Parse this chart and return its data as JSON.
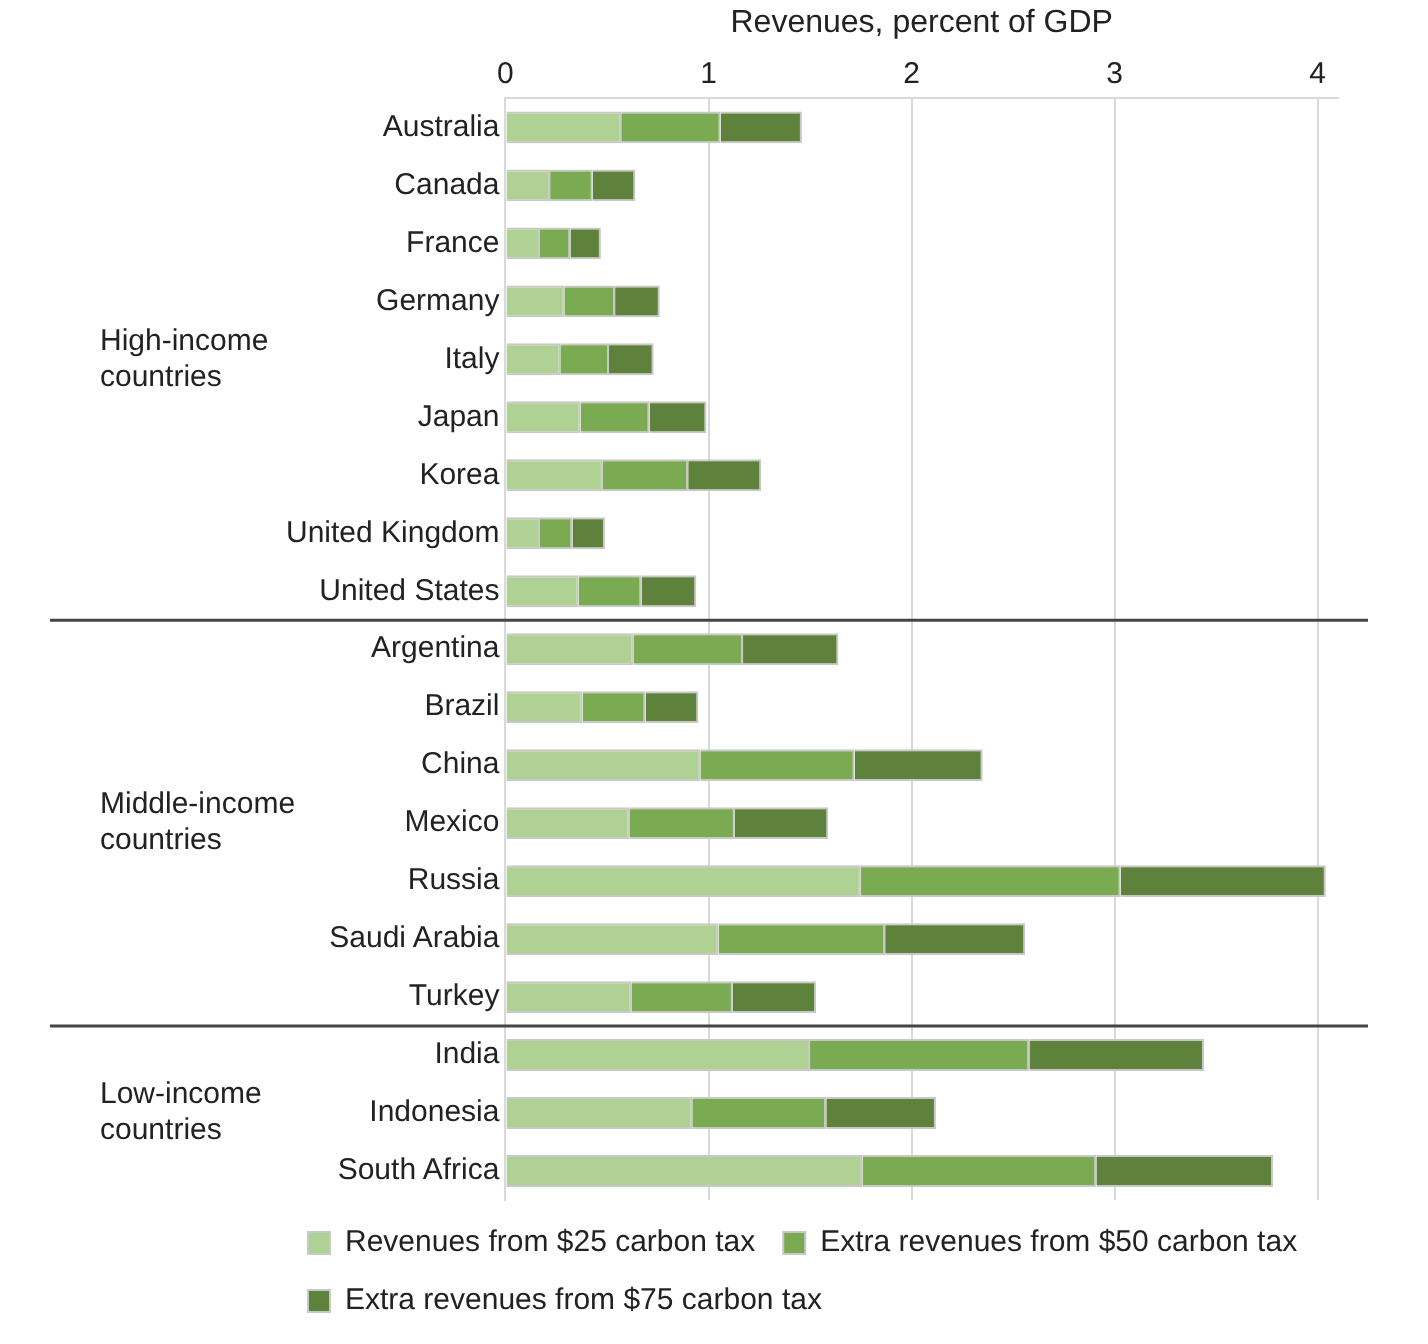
{
  "chart_data": {
    "type": "bar",
    "orientation": "horizontal",
    "stacked": true,
    "xlabel": "Revenues, percent of GDP",
    "categories": [
      "Australia",
      "Canada",
      "France",
      "Germany",
      "Italy",
      "Japan",
      "Korea",
      "United Kingdom",
      "United States",
      "Argentina",
      "Brazil",
      "China",
      "Mexico",
      "Russia",
      "Saudi Arabia",
      "Turkey",
      "India",
      "Indonesia",
      "South Africa"
    ],
    "series": [
      {
        "name": "Revenues from $25 carbon tax",
        "color": "#b0d194",
        "values": [
          0.57,
          0.22,
          0.17,
          0.29,
          0.27,
          0.37,
          0.48,
          0.17,
          0.36,
          0.63,
          0.38,
          0.96,
          0.61,
          1.75,
          1.05,
          0.62,
          1.5,
          0.92,
          1.76
        ]
      },
      {
        "name": "Extra revenues from $50 carbon tax",
        "color": "#7aab52",
        "values": [
          0.49,
          0.21,
          0.15,
          0.25,
          0.24,
          0.34,
          0.42,
          0.16,
          0.31,
          0.54,
          0.31,
          0.76,
          0.52,
          1.28,
          0.82,
          0.5,
          1.08,
          0.66,
          1.15
        ]
      },
      {
        "name": "Extra revenues from $75 carbon tax",
        "color": "#5e823b",
        "values": [
          0.4,
          0.21,
          0.15,
          0.22,
          0.22,
          0.28,
          0.36,
          0.16,
          0.27,
          0.47,
          0.26,
          0.63,
          0.46,
          1.01,
          0.69,
          0.41,
          0.86,
          0.54,
          0.87
        ]
      }
    ],
    "xlim": [
      0,
      4.1
    ],
    "xticks": [
      0,
      1,
      2,
      3,
      4
    ],
    "annotations": [
      "High-income countries",
      "Middle-income countries",
      "Low-income countries"
    ],
    "grid": "x",
    "legend": "bottom"
  }
}
